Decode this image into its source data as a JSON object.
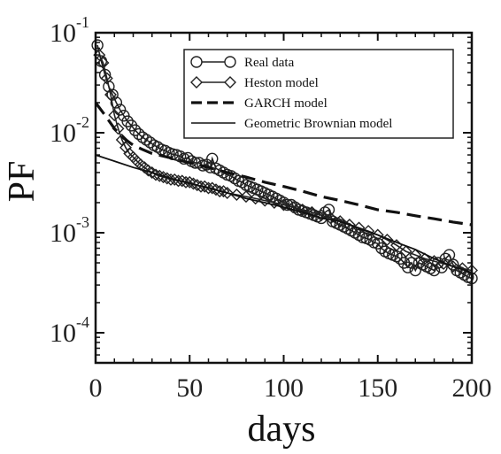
{
  "chart_data": {
    "type": "scatter",
    "title": "",
    "xlabel": "days",
    "ylabel": "PF",
    "xlim": [
      0,
      200
    ],
    "ylim": [
      5e-05,
      0.1
    ],
    "yscale": "log",
    "x_ticks": [
      "0",
      "50",
      "100",
      "150",
      "200"
    ],
    "y_ticks": [
      {
        "value": 0.1,
        "base": "10",
        "exp": "-1"
      },
      {
        "value": 0.01,
        "base": "10",
        "exp": "-2"
      },
      {
        "value": 0.001,
        "base": "10",
        "exp": "-3"
      },
      {
        "value": 0.0001,
        "base": "10",
        "exp": "-4"
      }
    ],
    "legend_position": "top-right",
    "series": [
      {
        "name": "Real data",
        "style": "line-circle",
        "color": "#222222",
        "points": [
          [
            1,
            0.075
          ],
          [
            3,
            0.052
          ],
          [
            5,
            0.038
          ],
          [
            7,
            0.029
          ],
          [
            9,
            0.024
          ],
          [
            11,
            0.02
          ],
          [
            13,
            0.017
          ],
          [
            15,
            0.0148
          ],
          [
            17,
            0.013
          ],
          [
            19,
            0.0118
          ],
          [
            21,
            0.0106
          ],
          [
            23,
            0.0097
          ],
          [
            25,
            0.009
          ],
          [
            27,
            0.0085
          ],
          [
            29,
            0.008
          ],
          [
            31,
            0.0075
          ],
          [
            33,
            0.0072
          ],
          [
            35,
            0.0068
          ],
          [
            37,
            0.0066
          ],
          [
            39,
            0.0063
          ],
          [
            41,
            0.0061
          ],
          [
            43,
            0.006
          ],
          [
            45,
            0.0058
          ],
          [
            47,
            0.0055
          ],
          [
            49,
            0.0056
          ],
          [
            51,
            0.0052
          ],
          [
            53,
            0.005
          ],
          [
            55,
            0.005
          ],
          [
            57,
            0.0047
          ],
          [
            59,
            0.0048
          ],
          [
            61,
            0.0045
          ],
          [
            62,
            0.0055
          ],
          [
            64,
            0.0044
          ],
          [
            66,
            0.0042
          ],
          [
            68,
            0.004
          ],
          [
            70,
            0.0038
          ],
          [
            72,
            0.0037
          ],
          [
            74,
            0.0035
          ],
          [
            76,
            0.0033
          ],
          [
            78,
            0.0032
          ],
          [
            80,
            0.003
          ],
          [
            82,
            0.0029
          ],
          [
            84,
            0.0028
          ],
          [
            86,
            0.0027
          ],
          [
            88,
            0.0026
          ],
          [
            90,
            0.0025
          ],
          [
            92,
            0.0024
          ],
          [
            94,
            0.0023
          ],
          [
            96,
            0.0022
          ],
          [
            98,
            0.0021
          ],
          [
            100,
            0.002
          ],
          [
            102,
            0.0019
          ],
          [
            104,
            0.0019
          ],
          [
            106,
            0.0018
          ],
          [
            108,
            0.0017
          ],
          [
            110,
            0.00165
          ],
          [
            112,
            0.0016
          ],
          [
            114,
            0.00155
          ],
          [
            116,
            0.0015
          ],
          [
            118,
            0.00145
          ],
          [
            120,
            0.0014
          ],
          [
            122,
            0.0016
          ],
          [
            124,
            0.0017
          ],
          [
            126,
            0.0013
          ],
          [
            128,
            0.00125
          ],
          [
            130,
            0.0012
          ],
          [
            132,
            0.00115
          ],
          [
            134,
            0.0011
          ],
          [
            136,
            0.00105
          ],
          [
            138,
            0.001
          ],
          [
            140,
            0.00095
          ],
          [
            142,
            0.0009
          ],
          [
            144,
            0.00088
          ],
          [
            146,
            0.00085
          ],
          [
            148,
            0.0008
          ],
          [
            150,
            0.00078
          ],
          [
            152,
            0.0007
          ],
          [
            154,
            0.00065
          ],
          [
            156,
            0.00062
          ],
          [
            158,
            0.0006
          ],
          [
            160,
            0.00058
          ],
          [
            162,
            0.00055
          ],
          [
            164,
            0.0005
          ],
          [
            166,
            0.00045
          ],
          [
            168,
            0.0005
          ],
          [
            170,
            0.00042
          ],
          [
            172,
            0.0005
          ],
          [
            174,
            0.00048
          ],
          [
            176,
            0.00046
          ],
          [
            178,
            0.00044
          ],
          [
            180,
            0.00042
          ],
          [
            182,
            0.0005
          ],
          [
            184,
            0.00045
          ],
          [
            186,
            0.00055
          ],
          [
            188,
            0.0006
          ],
          [
            190,
            0.00048
          ],
          [
            192,
            0.00042
          ],
          [
            194,
            0.0004
          ],
          [
            196,
            0.00038
          ],
          [
            198,
            0.00036
          ],
          [
            200,
            0.00035
          ]
        ]
      },
      {
        "name": "Heston model",
        "style": "line-diamond",
        "color": "#222222",
        "points": [
          [
            2,
            0.06
          ],
          [
            4,
            0.05
          ],
          [
            6,
            0.035
          ],
          [
            8,
            0.024
          ],
          [
            10,
            0.015
          ],
          [
            12,
            0.011
          ],
          [
            14,
            0.0085
          ],
          [
            16,
            0.0071
          ],
          [
            18,
            0.0062
          ],
          [
            20,
            0.0057
          ],
          [
            22,
            0.0052
          ],
          [
            24,
            0.0048
          ],
          [
            26,
            0.0045
          ],
          [
            28,
            0.0042
          ],
          [
            30,
            0.004
          ],
          [
            32,
            0.0038
          ],
          [
            34,
            0.0037
          ],
          [
            36,
            0.0036
          ],
          [
            38,
            0.0035
          ],
          [
            40,
            0.0034
          ],
          [
            42,
            0.0034
          ],
          [
            44,
            0.0033
          ],
          [
            46,
            0.0033
          ],
          [
            48,
            0.0032
          ],
          [
            50,
            0.0032
          ],
          [
            52,
            0.0031
          ],
          [
            54,
            0.003
          ],
          [
            56,
            0.0029
          ],
          [
            58,
            0.0029
          ],
          [
            60,
            0.0028
          ],
          [
            62,
            0.0028
          ],
          [
            64,
            0.0027
          ],
          [
            66,
            0.0026
          ],
          [
            68,
            0.0026
          ],
          [
            70,
            0.0025
          ],
          [
            75,
            0.0024
          ],
          [
            80,
            0.0023
          ],
          [
            85,
            0.0022
          ],
          [
            90,
            0.0021
          ],
          [
            95,
            0.002
          ],
          [
            100,
            0.0019
          ],
          [
            105,
            0.0018
          ],
          [
            110,
            0.0017
          ],
          [
            115,
            0.0016
          ],
          [
            120,
            0.0015
          ],
          [
            125,
            0.0014
          ],
          [
            130,
            0.0013
          ],
          [
            135,
            0.0012
          ],
          [
            140,
            0.00112
          ],
          [
            145,
            0.00104
          ],
          [
            150,
            0.00095
          ],
          [
            155,
            0.00085
          ],
          [
            160,
            0.00075
          ],
          [
            165,
            0.00065
          ],
          [
            170,
            0.0006
          ],
          [
            175,
            0.00055
          ],
          [
            180,
            0.00052
          ],
          [
            185,
            0.00049
          ],
          [
            190,
            0.00046
          ],
          [
            195,
            0.00044
          ],
          [
            200,
            0.00042
          ]
        ]
      },
      {
        "name": "GARCH model",
        "style": "dashed",
        "color": "#111111",
        "points": [
          [
            0,
            0.02
          ],
          [
            5,
            0.015
          ],
          [
            10,
            0.011
          ],
          [
            15,
            0.0088
          ],
          [
            20,
            0.0075
          ],
          [
            25,
            0.0068
          ],
          [
            30,
            0.0062
          ],
          [
            40,
            0.0056
          ],
          [
            50,
            0.005
          ],
          [
            60,
            0.0045
          ],
          [
            70,
            0.004
          ],
          [
            80,
            0.0036
          ],
          [
            90,
            0.0032
          ],
          [
            100,
            0.0029
          ],
          [
            110,
            0.0026
          ],
          [
            120,
            0.0023
          ],
          [
            130,
            0.0021
          ],
          [
            140,
            0.0019
          ],
          [
            150,
            0.0017
          ],
          [
            160,
            0.0016
          ],
          [
            170,
            0.00148
          ],
          [
            180,
            0.00138
          ],
          [
            190,
            0.00128
          ],
          [
            200,
            0.0012
          ]
        ]
      },
      {
        "name": "Geometric Brownian model",
        "style": "solid",
        "color": "#111111",
        "points": [
          [
            0,
            0.006
          ],
          [
            10,
            0.0052
          ],
          [
            20,
            0.0045
          ],
          [
            30,
            0.004
          ],
          [
            40,
            0.0035
          ],
          [
            50,
            0.0031
          ],
          [
            60,
            0.0028
          ],
          [
            70,
            0.0025
          ],
          [
            80,
            0.0022
          ],
          [
            90,
            0.002
          ],
          [
            100,
            0.0018
          ],
          [
            110,
            0.0016
          ],
          [
            120,
            0.0014
          ],
          [
            130,
            0.0013
          ],
          [
            140,
            0.0011
          ],
          [
            150,
            0.00095
          ],
          [
            160,
            0.0008
          ],
          [
            170,
            0.00068
          ],
          [
            180,
            0.00055
          ],
          [
            190,
            0.00046
          ],
          [
            200,
            0.0004
          ]
        ]
      }
    ]
  }
}
